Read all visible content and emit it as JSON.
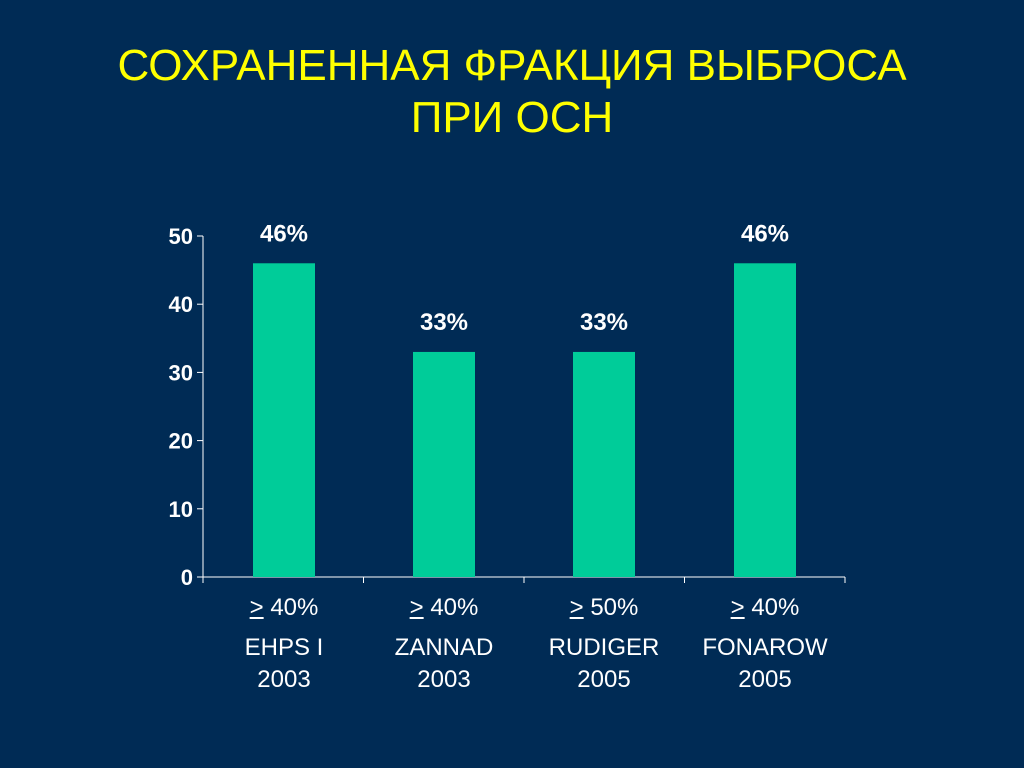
{
  "slide": {
    "title_line1": "СОХРАНЕННАЯ ФРАКЦИЯ ВЫБРОСА",
    "title_line2": "ПРИ ОСН"
  },
  "colors": {
    "background": "#002b55",
    "title": "#ffff00",
    "bar": "#00cc99",
    "text": "#ffffff"
  },
  "chart_data": {
    "type": "bar",
    "categories": [
      {
        "threshold_symbol": ">",
        "threshold_value": "40%",
        "study": "EHPS I",
        "year": "2003"
      },
      {
        "threshold_symbol": ">",
        "threshold_value": "40%",
        "study": "ZANNAD",
        "year": "2003"
      },
      {
        "threshold_symbol": ">",
        "threshold_value": "50%",
        "study": "RUDIGER",
        "year": "2005"
      },
      {
        "threshold_symbol": ">",
        "threshold_value": "40%",
        "study": "FONAROW",
        "year": "2005"
      }
    ],
    "values": [
      46,
      33,
      33,
      46
    ],
    "data_labels": [
      "46%",
      "33%",
      "33%",
      "46%"
    ],
    "ylim": [
      0,
      50
    ],
    "yticks": [
      "0",
      "10",
      "20",
      "30",
      "40",
      "50"
    ],
    "grid": false,
    "legend": "none"
  }
}
